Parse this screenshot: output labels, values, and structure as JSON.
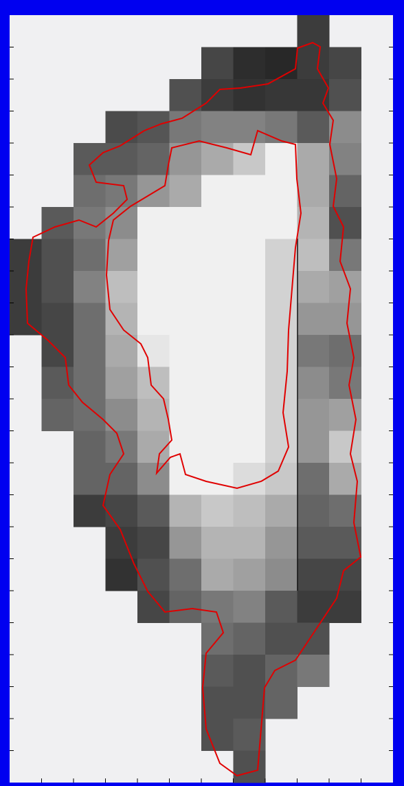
{
  "chart_data": {
    "type": "heatmap",
    "z": [
      [
        null,
        null,
        null,
        null,
        null,
        null,
        null,
        null,
        null,
        60,
        null,
        null
      ],
      [
        null,
        null,
        null,
        null,
        null,
        null,
        70,
        45,
        40,
        60,
        70,
        null
      ],
      [
        null,
        null,
        null,
        null,
        null,
        80,
        60,
        50,
        55,
        55,
        80,
        null
      ],
      [
        null,
        null,
        null,
        75,
        85,
        120,
        130,
        130,
        120,
        90,
        140,
        null
      ],
      [
        null,
        null,
        90,
        90,
        100,
        150,
        170,
        200,
        240,
        170,
        130,
        null
      ],
      [
        null,
        null,
        110,
        120,
        150,
        170,
        240,
        240,
        240,
        170,
        100,
        null
      ],
      [
        null,
        90,
        120,
        140,
        240,
        240,
        240,
        240,
        240,
        180,
        80,
        null
      ],
      [
        60,
        80,
        110,
        160,
        240,
        240,
        240,
        240,
        210,
        190,
        120,
        null
      ],
      [
        60,
        80,
        130,
        190,
        240,
        240,
        240,
        240,
        210,
        170,
        160,
        null
      ],
      [
        60,
        70,
        110,
        180,
        240,
        240,
        240,
        240,
        210,
        150,
        150,
        null
      ],
      [
        null,
        70,
        110,
        170,
        230,
        240,
        240,
        240,
        210,
        120,
        110,
        null
      ],
      [
        null,
        90,
        110,
        160,
        190,
        240,
        240,
        240,
        210,
        140,
        120,
        null
      ],
      [
        null,
        100,
        110,
        140,
        180,
        240,
        240,
        240,
        210,
        150,
        160,
        null
      ],
      [
        null,
        null,
        100,
        120,
        170,
        240,
        240,
        240,
        210,
        150,
        200,
        null
      ],
      [
        null,
        null,
        100,
        100,
        140,
        240,
        240,
        220,
        200,
        110,
        170,
        null
      ],
      [
        null,
        null,
        60,
        70,
        90,
        180,
        200,
        190,
        170,
        100,
        110,
        null
      ],
      [
        null,
        null,
        null,
        60,
        70,
        150,
        180,
        180,
        150,
        90,
        90,
        null
      ],
      [
        null,
        null,
        null,
        50,
        80,
        110,
        170,
        160,
        140,
        70,
        70,
        null
      ],
      [
        null,
        null,
        null,
        null,
        70,
        100,
        120,
        130,
        90,
        60,
        60,
        null
      ],
      [
        null,
        null,
        null,
        null,
        null,
        null,
        110,
        100,
        80,
        80,
        null,
        null
      ],
      [
        null,
        null,
        null,
        null,
        null,
        null,
        90,
        80,
        100,
        120,
        null,
        null
      ],
      [
        null,
        null,
        null,
        null,
        null,
        null,
        80,
        80,
        100,
        null,
        null,
        null
      ],
      [
        null,
        null,
        null,
        null,
        null,
        null,
        80,
        90,
        null,
        null,
        null,
        null
      ],
      [
        null,
        null,
        null,
        null,
        null,
        null,
        null,
        80,
        null,
        null,
        null,
        null
      ]
    ]
  }
}
